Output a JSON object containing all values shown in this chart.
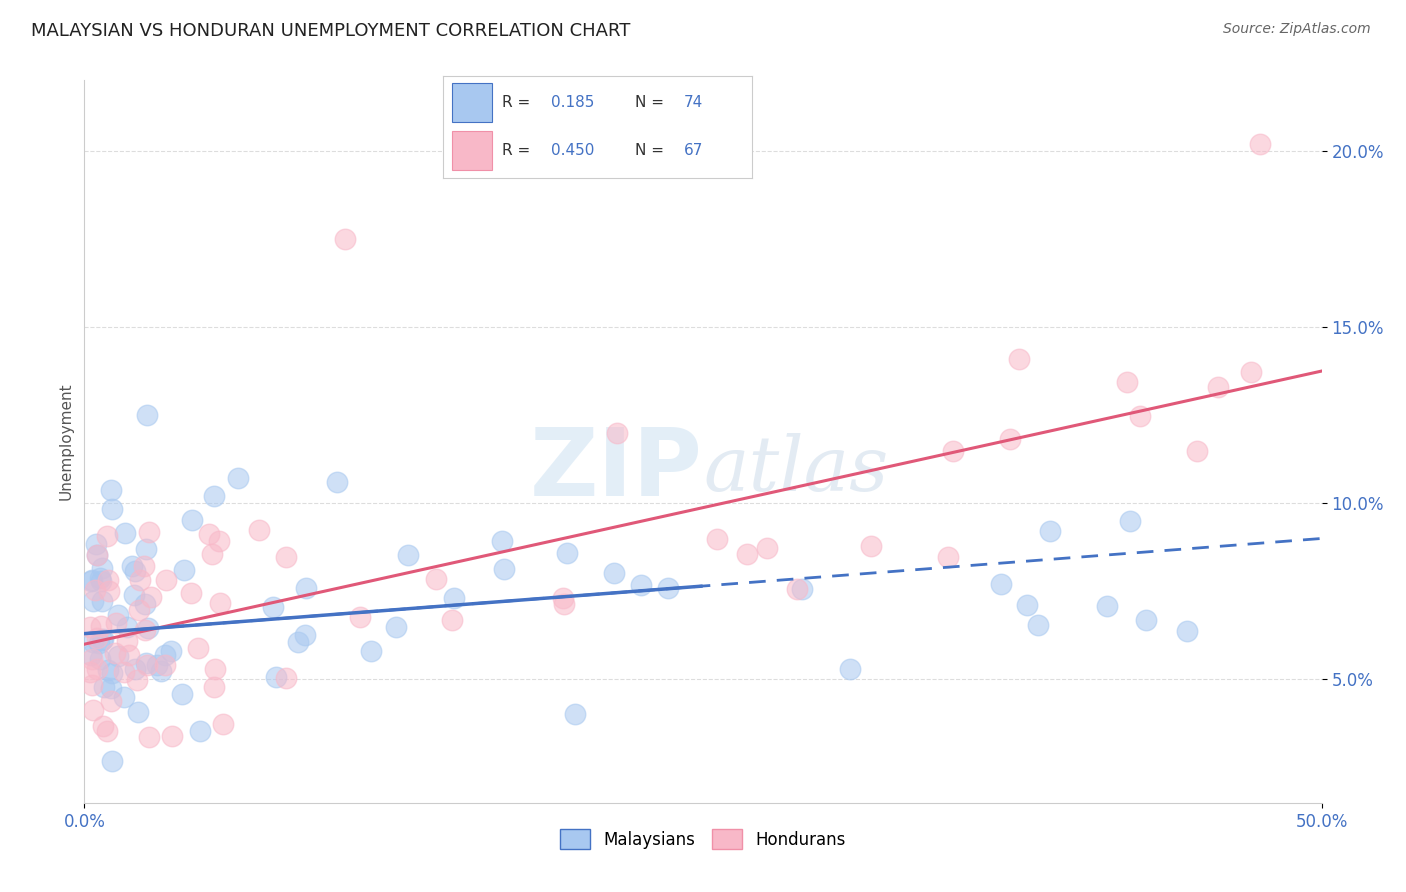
{
  "title": "MALAYSIAN VS HONDURAN UNEMPLOYMENT CORRELATION CHART",
  "source": "Source: ZipAtlas.com",
  "ylabel": "Unemployment",
  "x_min": 0.0,
  "x_max": 50.0,
  "y_min": 1.5,
  "y_max": 22.0,
  "y_ticks": [
    5.0,
    10.0,
    15.0,
    20.0
  ],
  "y_tick_labels": [
    "5.0%",
    "10.0%",
    "15.0%",
    "20.0%"
  ],
  "color_malaysian_fill": "#A8C8F0",
  "color_malaysian_edge": "#7EB0E8",
  "color_honduran_fill": "#F8B8C8",
  "color_honduran_edge": "#F090A8",
  "color_line_malaysian": "#4472C4",
  "color_line_honduran": "#E05878",
  "color_axis_text": "#4472C4",
  "color_xaxis_text": "#4472C4",
  "watermark_color": "#DDEEFF",
  "background_color": "#FFFFFF",
  "grid_color": "#DDDDDD",
  "grid_style": "--",
  "mal_line_intercept": 6.3,
  "mal_line_slope": 0.054,
  "mal_solid_x_end": 25.0,
  "hon_line_intercept": 6.0,
  "hon_line_slope": 0.155,
  "hon_solid_x_end": 50.0,
  "seed_mal": 42,
  "seed_hon": 99
}
